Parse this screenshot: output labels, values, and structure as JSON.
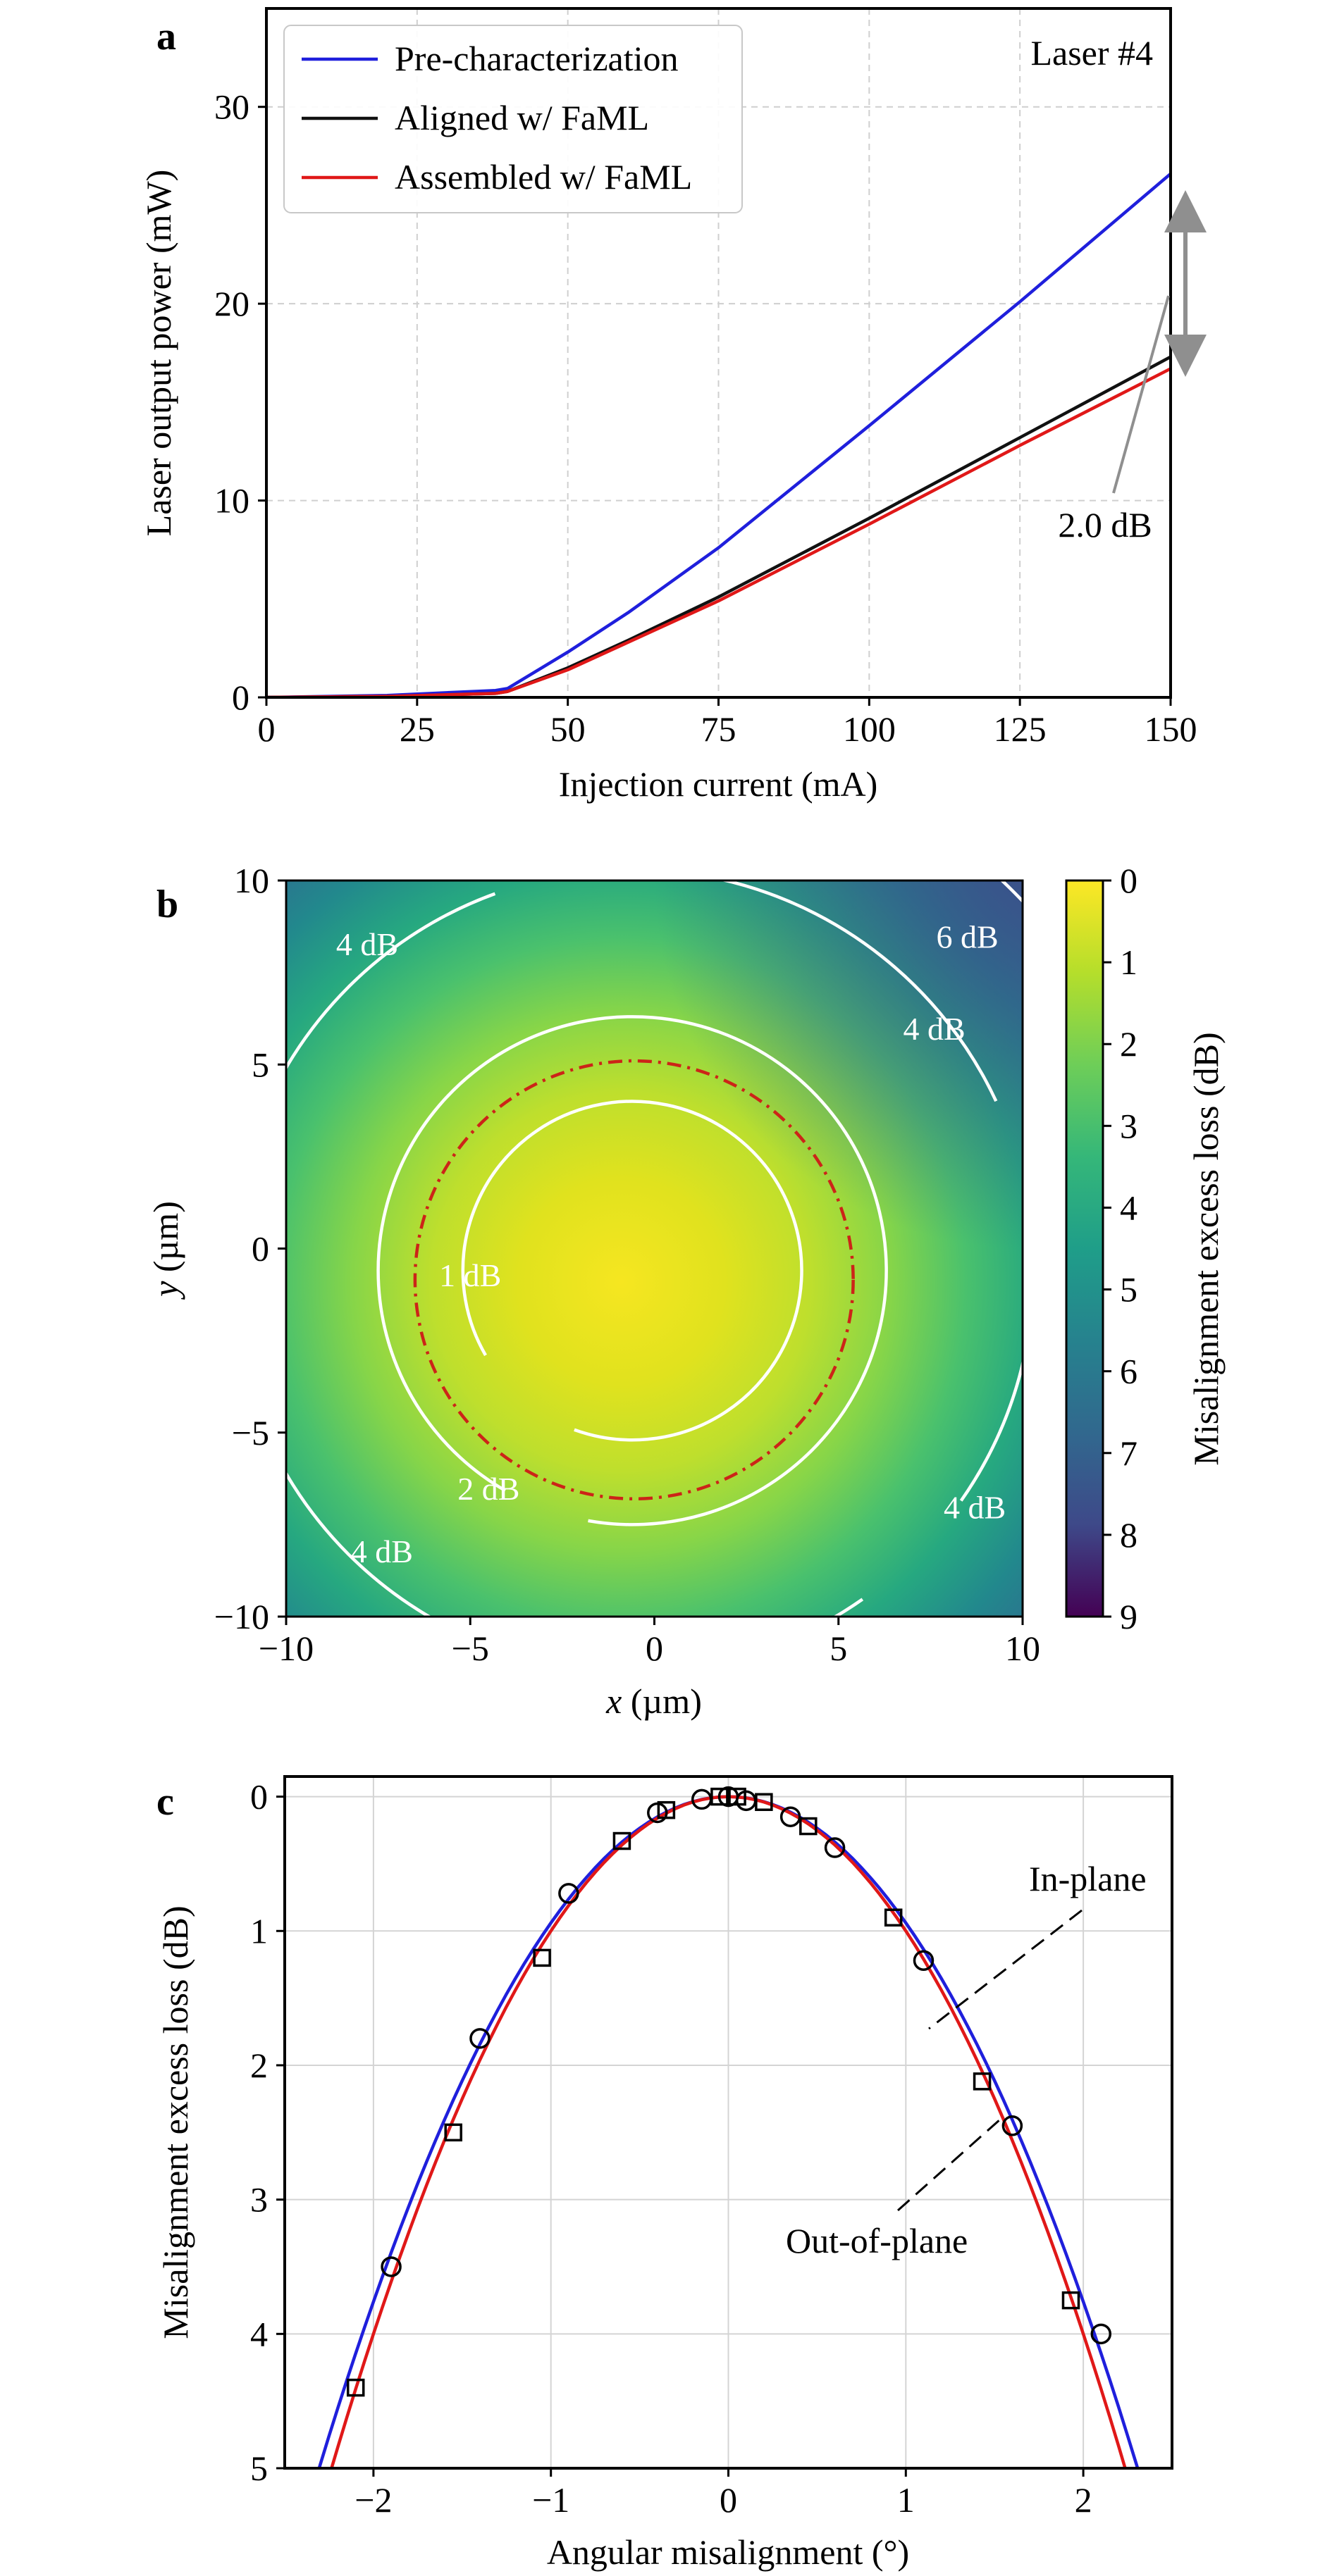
{
  "figure": {
    "panels": [
      {
        "id": "a",
        "letter": "a"
      },
      {
        "id": "b",
        "letter": "b"
      },
      {
        "id": "c",
        "letter": "c"
      }
    ]
  },
  "chart_data": [
    {
      "panel": "a",
      "type": "line",
      "xlabel": "Injection current (mA)",
      "ylabel": "Laser output power (mW)",
      "xlim": [
        0,
        150
      ],
      "ylim": [
        0,
        35
      ],
      "xticks": [
        0,
        25,
        50,
        75,
        100,
        125,
        150
      ],
      "yticks": [
        0,
        10,
        20,
        30
      ],
      "grid": true,
      "legend_position": "top-left",
      "annotation_corner": "Laser #4",
      "annotation_arrow": "2.0 dB",
      "series": [
        {
          "name": "Pre-characterization",
          "color": "#1f1fdc",
          "x": [
            0,
            20,
            38,
            40,
            50,
            60,
            75,
            100,
            125,
            150
          ],
          "y": [
            0,
            0.1,
            0.35,
            0.45,
            2.3,
            4.3,
            7.6,
            13.8,
            20.1,
            26.6
          ]
        },
        {
          "name": "Aligned w/ FaML",
          "color": "#111111",
          "x": [
            0,
            20,
            38,
            40,
            50,
            60,
            75,
            100,
            125,
            150
          ],
          "y": [
            0,
            0.05,
            0.2,
            0.3,
            1.5,
            2.9,
            5.1,
            9.1,
            13.2,
            17.3
          ]
        },
        {
          "name": "Assembled w/ FaML",
          "color": "#e01818",
          "x": [
            0,
            20,
            38,
            40,
            50,
            60,
            75,
            100,
            125,
            150
          ],
          "y": [
            0,
            0.05,
            0.2,
            0.3,
            1.4,
            2.8,
            4.9,
            8.8,
            12.8,
            16.7
          ]
        }
      ]
    },
    {
      "panel": "b",
      "type": "heatmap",
      "xlabel_italic": "x",
      "xlabel_unit": " (µm)",
      "ylabel_italic": "y",
      "ylabel_unit": " (µm)",
      "xlim": [
        -10,
        10
      ],
      "ylim": [
        -10,
        10
      ],
      "xticks": [
        -10,
        -5,
        0,
        5,
        10
      ],
      "yticks": [
        -10,
        -5,
        0,
        5,
        10
      ],
      "colorbar_label": "Misalignment excess loss (dB)",
      "colorbar_range": [
        0,
        9
      ],
      "colorbar_ticks": [
        0,
        1,
        2,
        3,
        4,
        5,
        6,
        7,
        8,
        9
      ],
      "center": [
        -0.6,
        -0.6
      ],
      "contour_labels": [
        {
          "text": "4 dB",
          "x": -7.8,
          "y": 8.3
        },
        {
          "text": "6 dB",
          "x": 8.5,
          "y": 8.5
        },
        {
          "text": "4 dB",
          "x": 7.6,
          "y": 6.0
        },
        {
          "text": "1 dB",
          "x": -5.0,
          "y": -0.7
        },
        {
          "text": "2 dB",
          "x": -4.5,
          "y": -6.5
        },
        {
          "text": "4 dB",
          "x": -7.4,
          "y": -8.2
        },
        {
          "text": "4 dB",
          "x": 8.7,
          "y": -7.0
        }
      ]
    },
    {
      "panel": "c",
      "type": "scatter",
      "xlabel": "Angular misalignment (°)",
      "ylabel": "Misalignment excess loss (dB)",
      "xlim": [
        -2.5,
        2.5
      ],
      "ylim": [
        5,
        -0.15
      ],
      "xticks": [
        -2,
        -1,
        0,
        1,
        2
      ],
      "yticks": [
        0,
        1,
        2,
        3,
        4,
        5
      ],
      "grid": true,
      "annotations": [
        "In-plane",
        "Out-of-plane"
      ],
      "series": [
        {
          "name": "In-plane",
          "marker": "circle",
          "color": "#1f1fdc",
          "x": [
            -1.9,
            -1.4,
            -0.9,
            -0.4,
            -0.15,
            0.0,
            0.1,
            0.35,
            0.6,
            1.1,
            1.6,
            2.1
          ],
          "y": [
            3.5,
            1.8,
            0.72,
            0.12,
            0.02,
            0.0,
            0.03,
            0.15,
            0.38,
            1.22,
            2.45,
            4.0
          ],
          "fit_a": 0.94
        },
        {
          "name": "Out-of-plane",
          "marker": "square",
          "color": "#e01818",
          "x": [
            -2.1,
            -1.55,
            -1.05,
            -0.6,
            -0.35,
            -0.05,
            0.05,
            0.2,
            0.45,
            0.93,
            1.43,
            1.93
          ],
          "y": [
            4.4,
            2.5,
            1.2,
            0.33,
            0.1,
            0.0,
            0.0,
            0.04,
            0.22,
            0.9,
            2.12,
            3.75
          ],
          "fit_a": 1.0
        }
      ]
    }
  ]
}
